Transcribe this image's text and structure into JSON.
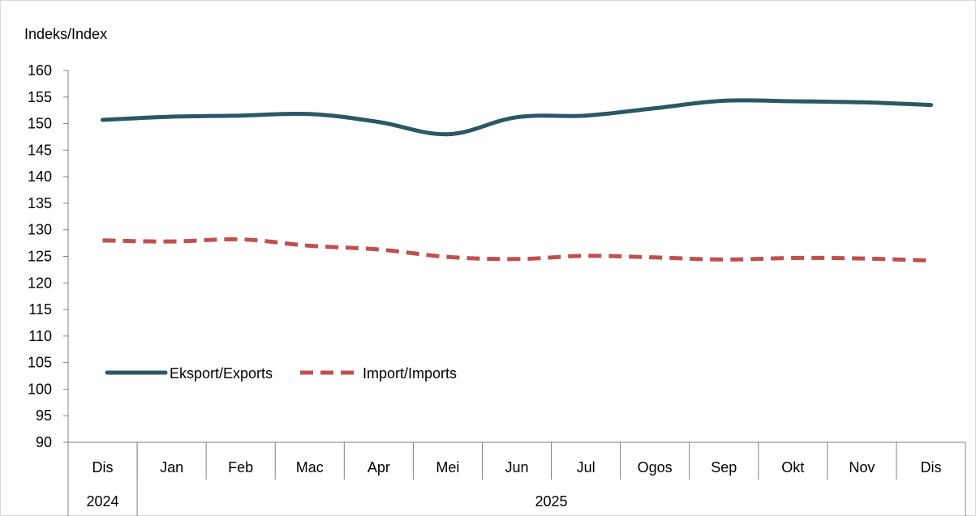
{
  "chart_data": {
    "type": "line",
    "ylabel": "Indeks/Index",
    "ylim": [
      90,
      160
    ],
    "ystep": 5,
    "categories": [
      "Dis",
      "Jan",
      "Feb",
      "Mac",
      "Apr",
      "Mei",
      "Jun",
      "Jul",
      "Ogos",
      "Sep",
      "Okt",
      "Nov",
      "Dis"
    ],
    "year_groups": [
      {
        "label": "2024",
        "count": 1
      },
      {
        "label": "2025",
        "count": 12
      }
    ],
    "series": [
      {
        "name": "Eksport/Exports",
        "color": "#2a5866",
        "style": "solid",
        "values": [
          150.7,
          151.3,
          151.5,
          151.8,
          150.3,
          148.0,
          151.2,
          151.5,
          152.9,
          154.3,
          154.2,
          154.0,
          153.5
        ]
      },
      {
        "name": "Import/Imports",
        "color": "#c0504d",
        "style": "dashed",
        "values": [
          128.0,
          127.8,
          128.2,
          127.0,
          126.3,
          124.9,
          124.5,
          125.1,
          124.8,
          124.4,
          124.7,
          124.6,
          124.2
        ]
      }
    ],
    "legend_position": "lower-left",
    "grid": false
  }
}
